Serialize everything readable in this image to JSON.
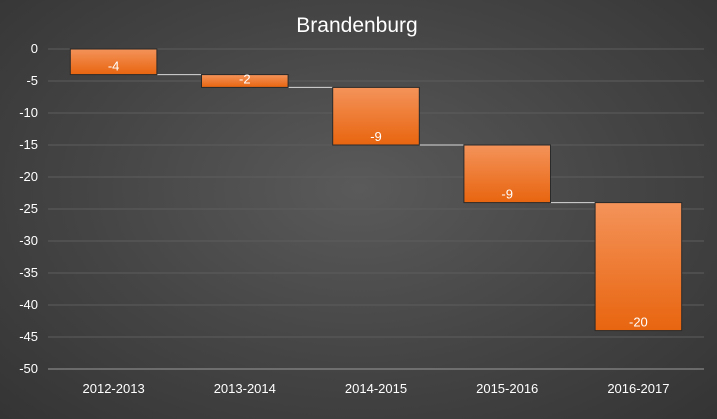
{
  "chart_data": {
    "type": "bar",
    "subtype": "waterfall",
    "title": "Brandenburg",
    "xlabel": "",
    "ylabel": "",
    "categories": [
      "2012-2013",
      "2013-2014",
      "2014-2015",
      "2015-2016",
      "2016-2017"
    ],
    "values": [
      -4,
      -2,
      -9,
      -9,
      -20
    ],
    "data_labels": [
      "-4",
      "-2",
      "-9",
      "-9",
      "-20"
    ],
    "ylim": [
      -50,
      0
    ],
    "y_ticks": [
      0,
      -5,
      -10,
      -15,
      -20,
      -25,
      -30,
      -35,
      -40,
      -45,
      -50
    ],
    "y_tick_labels": [
      "0",
      "-5",
      "-10",
      "-15",
      "-20",
      "-25",
      "-30",
      "-35",
      "-40",
      "-45",
      "-50"
    ],
    "grid": true,
    "legend": "none",
    "colors": {
      "bar_top": "#f4935a",
      "bar_bottom": "#e8650f",
      "background": "#444444",
      "grid": "#5d5d5d",
      "connector": "#d9d9d9",
      "text": "#ffffff"
    }
  }
}
